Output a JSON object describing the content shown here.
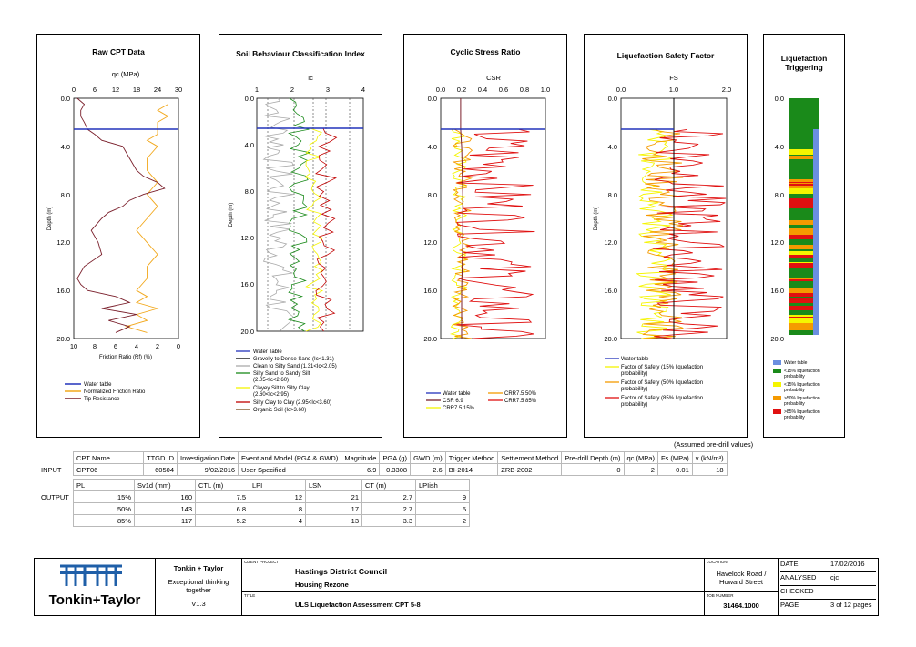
{
  "panels": {
    "raw_cpt": {
      "title": "Raw CPT Data",
      "top_axis_label": "qc (MPa)",
      "top_ticks": [
        "0",
        "6",
        "12",
        "18",
        "24",
        "30"
      ],
      "bottom_axis_label": "Friction Ratio (Rf) (%)",
      "bottom_ticks": [
        "10",
        "8",
        "6",
        "4",
        "2",
        "0"
      ],
      "y_label": "Depth (m)",
      "legend": [
        "Water table",
        "Normalized Friction Ratio",
        "Tip Resistance"
      ]
    },
    "sbt": {
      "title": "Soil Behaviour Classification Index",
      "top_axis_label": "Ic",
      "top_ticks": [
        "1",
        "2",
        "3",
        "4"
      ],
      "y_label": "Depth (m)",
      "legend": [
        "Water Table",
        "Gravelly to Dense Sand (Ic<1.31)",
        "Clean to Silty Sand (1.31<Ic<2.05)",
        "Silty Sand to Sandy Silt",
        "(2.05<Ic<2.60)",
        "Clayey Silt to Silty Clay",
        "(2.60<Ic<2.95)",
        "Silty Clay to Clay (2.95<Ic<3.60)",
        "Organic Soil (Ic>3.60)"
      ]
    },
    "csr": {
      "title": "Cyclic Stress Ratio",
      "top_axis_label": "CSR",
      "top_ticks": [
        "0.0",
        "0.2",
        "0.4",
        "0.6",
        "0.8",
        "1.0"
      ],
      "legend": [
        "Water table",
        "CSR 6.9",
        "CRR7.5 15%",
        "CRR7.5 50%",
        "CRR7.5 85%"
      ]
    },
    "fs": {
      "title": "Liquefaction Safety Factor",
      "top_axis_label": "FS",
      "top_ticks": [
        "0.0",
        "1.0",
        "2.0"
      ],
      "y_label": "Depth (m)",
      "legend": [
        "Water table",
        "Factor of Safety (15% liquefaction",
        "probability)",
        "Factor of Safety (50% liquefaction",
        "probability)",
        "Factor of Safety (85% liquefaction",
        "probability)"
      ]
    },
    "trig": {
      "title_line1": "Liquefaction",
      "title_line2": "Triggering",
      "legend": [
        "Water table",
        "<15% liquefaction",
        "probability",
        "<15% liquefaction",
        "probability",
        ">50% liquefaction",
        "probability",
        ">85% liquefaction",
        "probability"
      ]
    },
    "depth_ticks": [
      "0.0",
      "4.0",
      "8.0",
      "12.0",
      "16.0",
      "20.0"
    ]
  },
  "chart_data": {
    "type": "line",
    "x_label": "Depth (m)",
    "ylim": [
      0,
      20
    ],
    "water_table_depth_m": 2.6,
    "series": [
      {
        "name": "Tip Resistance",
        "x": [
          0,
          0.5,
          1.0,
          1.5,
          2.0,
          2.6,
          3.0,
          3.5,
          4.0,
          5.0,
          6.0,
          6.5,
          7.0,
          7.5,
          8.0,
          8.5,
          9.0,
          9.5,
          10,
          11,
          12,
          13,
          14,
          15,
          15.5,
          16,
          16.5,
          17,
          17.5,
          18,
          18.5,
          19,
          19.5
        ],
        "y": [
          1,
          3,
          2,
          2,
          3,
          4,
          6,
          8,
          14,
          16,
          18,
          20,
          24,
          26,
          20,
          16,
          14,
          10,
          8,
          5,
          7,
          8,
          3,
          1,
          2,
          4,
          12,
          16,
          8,
          18,
          10,
          16,
          12
        ]
      },
      {
        "name": "Normalized Friction Ratio",
        "x": [
          0,
          0.5,
          1.0,
          1.5,
          2.0,
          2.6,
          3.0,
          3.5,
          4.0,
          5.0,
          6.0,
          7.0,
          8.0,
          9.0,
          10,
          11,
          12,
          13,
          14,
          15,
          16,
          16.5,
          17,
          17.5,
          18,
          18.5,
          19,
          19.5
        ],
        "y": [
          1,
          1,
          2,
          1,
          2,
          2,
          2,
          3,
          2,
          3,
          3,
          2,
          3,
          2,
          3,
          4,
          3,
          2,
          3,
          3,
          4,
          3,
          4,
          2,
          4,
          3,
          5,
          3
        ]
      },
      {
        "name": "CSR 6.9",
        "x": [
          0,
          2.6,
          4,
          8,
          12,
          16,
          20
        ],
        "y": [
          0.19,
          0.19,
          0.2,
          0.21,
          0.21,
          0.2,
          0.2
        ]
      }
    ],
    "input": {
      "headers": [
        "CPT Name",
        "TTGD ID",
        "Investigation Date",
        "Event and Model (PGA & GWD)",
        "Magnitude",
        "PGA (g)",
        "GWD (m)",
        "Trigger Method",
        "Settlement Method",
        "Pre-drill Depth (m)",
        "qc (MPa)",
        "Fs (MPa)",
        "γ (kN/m³)"
      ],
      "values": [
        "CPT06",
        "60504",
        "9/02/2016",
        "User Specified",
        "6.9",
        "0.3308",
        "2.6",
        "BI-2014",
        "ZRB-2002",
        "0",
        "2",
        "0.01",
        "18"
      ]
    },
    "output": {
      "headers": [
        "PL",
        "Sv1d (mm)",
        "CTL (m)",
        "LPI",
        "LSN",
        "CT (m)",
        "LPIish"
      ],
      "rows": [
        [
          "15%",
          "160",
          "7.5",
          "12",
          "21",
          "2.7",
          "9"
        ],
        [
          "50%",
          "143",
          "6.8",
          "8",
          "17",
          "2.7",
          "5"
        ],
        [
          "85%",
          "117",
          "5.2",
          "4",
          "13",
          "3.3",
          "2"
        ]
      ]
    }
  },
  "table_labels": {
    "input": "INPUT",
    "output": "OUTPUT",
    "assumed": "(Assumed pre-drill values)"
  },
  "title_block": {
    "company": "Tonkin + Taylor",
    "slogan_line1": "Exceptional thinking",
    "slogan_line2": "together",
    "version": "V1.3",
    "logo_text": "Tonkin+Taylor",
    "client_label": "CLIENT PROJECT",
    "client": "Hastings District Council",
    "project": "Housing Rezone",
    "title_label": "TITLE",
    "title": "ULS Liquefaction Assessment CPT 5-8",
    "location_label": "LOCATION",
    "location_line1": "Havelock Road /",
    "location_line2": "Howard Street",
    "job_label": "JOB NUMBER",
    "job_number": "31464.1000",
    "date_label": "DATE",
    "date": "17/02/2016",
    "analysed_label": "ANALYSED",
    "analysed": "cjc",
    "checked_label": "CHECKED",
    "page_label": "PAGE",
    "page": "3 of 12 pages"
  },
  "colors": {
    "water": "#2233bb",
    "tip": "#7a1f2b",
    "friction": "#f2a81c",
    "green": "#1a8a1a",
    "yellow": "#f5f500",
    "orange": "#f59a00",
    "red": "#e01010",
    "blue_band": "#6b8fe0"
  }
}
